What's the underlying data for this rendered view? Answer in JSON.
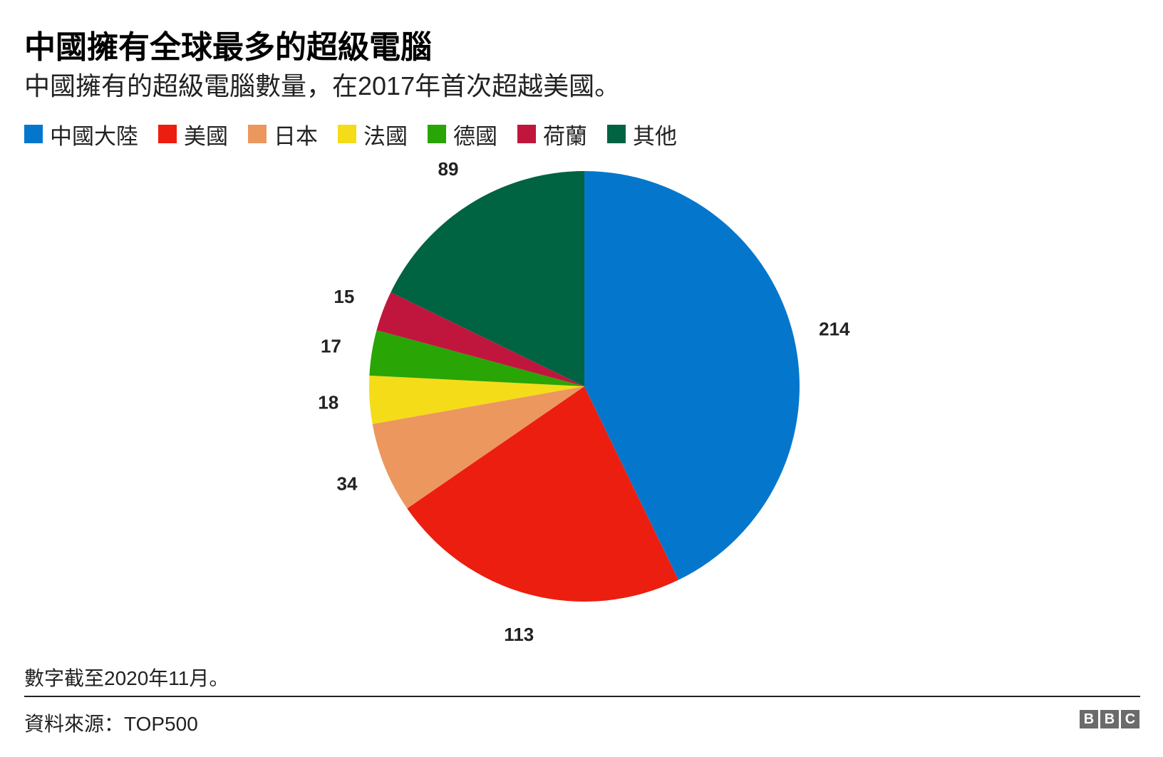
{
  "title": "中國擁有全球最多的超級電腦",
  "subtitle": "中國擁有的超級電腦數量，在2017年首次超越美國。",
  "chart_data": {
    "type": "pie",
    "categories": [
      "中國大陸",
      "美國",
      "日本",
      "法國",
      "德國",
      "荷蘭",
      "其他"
    ],
    "values": [
      214,
      113,
      34,
      18,
      17,
      15,
      89
    ],
    "colors": [
      "#0477cc",
      "#ec1e10",
      "#eb975e",
      "#f4dc19",
      "#29a506",
      "#c0163e",
      "#006341"
    ],
    "legend_position": "top-left",
    "start_angle": "12 o'clock, clockwise"
  },
  "note": "數字截至2020年11月。",
  "source": "資料來源：TOP500",
  "logo": "BBC"
}
